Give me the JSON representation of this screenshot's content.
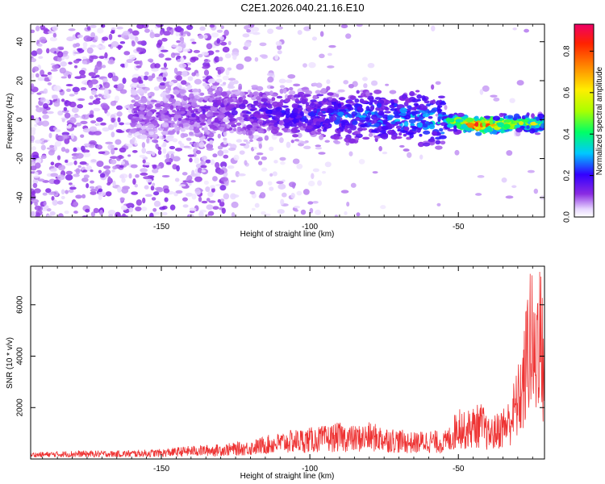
{
  "figure": {
    "title": "C2E1.2026.040.21.16.E10"
  },
  "chart_data": [
    {
      "type": "heatmap",
      "xlabel": "Height of straight line (km)",
      "ylabel": "Frequency (Hz)",
      "xlim": [
        -194,
        -21
      ],
      "ylim": [
        -50,
        49
      ],
      "xticks": [
        -150,
        -100,
        -50
      ],
      "yticks": [
        -40,
        -20,
        0,
        20,
        40
      ],
      "colorbar": {
        "label": "Normalized spectral amplitude",
        "range": [
          0,
          0.93
        ],
        "ticks": [
          0.0,
          0.2,
          0.4,
          0.6,
          0.8
        ]
      },
      "ridge_centers": [
        {
          "x": -150,
          "y": 3,
          "amplitude": 0.12
        },
        {
          "x": -130,
          "y": 4,
          "amplitude": 0.15
        },
        {
          "x": -110,
          "y": 3,
          "amplitude": 0.2
        },
        {
          "x": -90,
          "y": 2,
          "amplitude": 0.25
        },
        {
          "x": -70,
          "y": 1,
          "amplitude": 0.3
        },
        {
          "x": -55,
          "y": 0,
          "amplitude": 0.35
        },
        {
          "x": -45,
          "y": -3,
          "amplitude": 0.9
        },
        {
          "x": -30,
          "y": -2,
          "amplitude": 0.55
        }
      ]
    },
    {
      "type": "line",
      "xlabel": "Height of straight line (km)",
      "ylabel": "SNR (10 * v/v)",
      "xlim": [
        -194,
        -21
      ],
      "ylim": [
        0,
        7500
      ],
      "xticks": [
        -150,
        -100,
        -50
      ],
      "yticks": [
        2000,
        4000,
        6000
      ],
      "series": [
        {
          "name": "SNR",
          "color": "#ee3333",
          "x": [
            -194,
            -180,
            -165,
            -150,
            -140,
            -130,
            -125,
            -120,
            -115,
            -110,
            -105,
            -100,
            -95,
            -90,
            -85,
            -80,
            -75,
            -70,
            -65,
            -60,
            -55,
            -52,
            -50,
            -48,
            -45,
            -42,
            -40,
            -38,
            -35,
            -33,
            -30,
            -28,
            -26,
            -24,
            -23,
            -22,
            -21
          ],
          "values": [
            200,
            250,
            250,
            300,
            400,
            450,
            500,
            550,
            700,
            800,
            900,
            950,
            1000,
            1100,
            1000,
            1100,
            1000,
            900,
            800,
            900,
            800,
            1100,
            1800,
            1400,
            1600,
            1700,
            1200,
            1300,
            1600,
            1800,
            2800,
            3700,
            6300,
            4500,
            7400,
            5200,
            4400
          ]
        }
      ]
    }
  ]
}
